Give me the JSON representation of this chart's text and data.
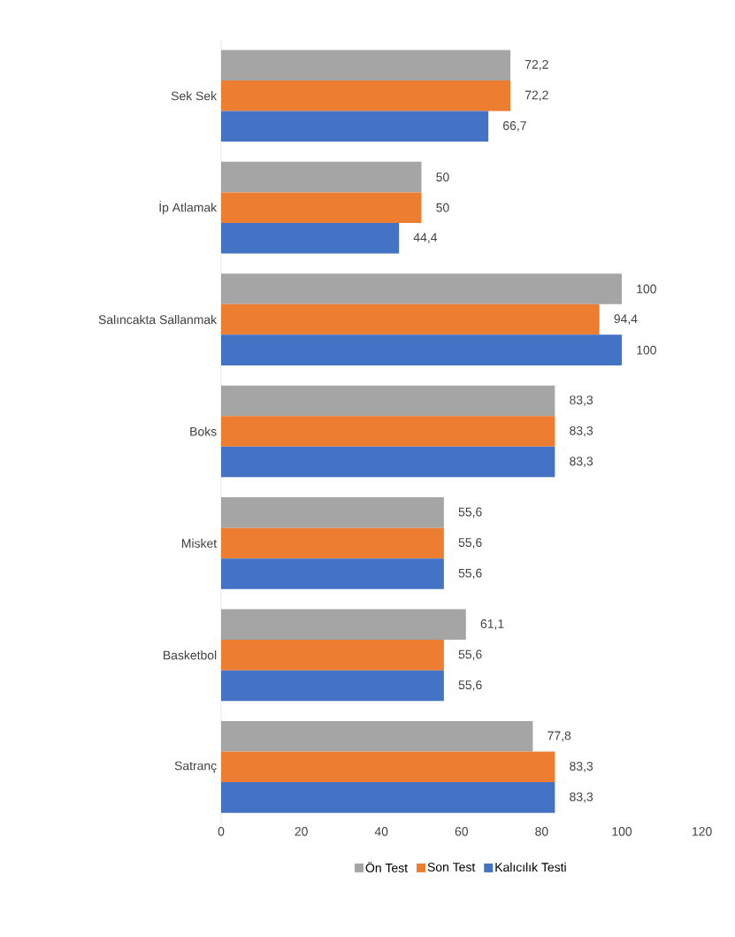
{
  "chart_data": {
    "type": "bar",
    "orientation": "horizontal",
    "categories": [
      "Sek Sek",
      "İp Atlamak",
      "Salıncakta Sallanmak",
      "Boks",
      "Misket",
      "Basketbol",
      "Satranç"
    ],
    "series": [
      {
        "name": "Ön Test",
        "color": "#a5a5a5",
        "values": [
          72.2,
          50,
          100,
          83.3,
          55.6,
          61.1,
          77.8
        ],
        "value_labels": [
          "72,2",
          "50",
          "100",
          "83,3",
          "55,6",
          "61,1",
          "77,8"
        ]
      },
      {
        "name": "Son Test",
        "color": "#ed7d31",
        "values": [
          72.2,
          50,
          94.4,
          83.3,
          55.6,
          55.6,
          83.3
        ],
        "value_labels": [
          "72,2",
          "50",
          "94,4",
          "83,3",
          "55,6",
          "55,6",
          "83,3"
        ]
      },
      {
        "name": "Kalıcılık Testi",
        "color": "#4472c4",
        "values": [
          66.7,
          44.4,
          100,
          83.3,
          55.6,
          55.6,
          83.3
        ],
        "value_labels": [
          "66,7",
          "44,4",
          "100",
          "83,3",
          "55,6",
          "55,6",
          "83,3"
        ]
      }
    ],
    "xlim": [
      0,
      120
    ],
    "xticks": [
      0,
      20,
      40,
      60,
      80,
      100,
      120
    ],
    "legend": "bottom"
  }
}
